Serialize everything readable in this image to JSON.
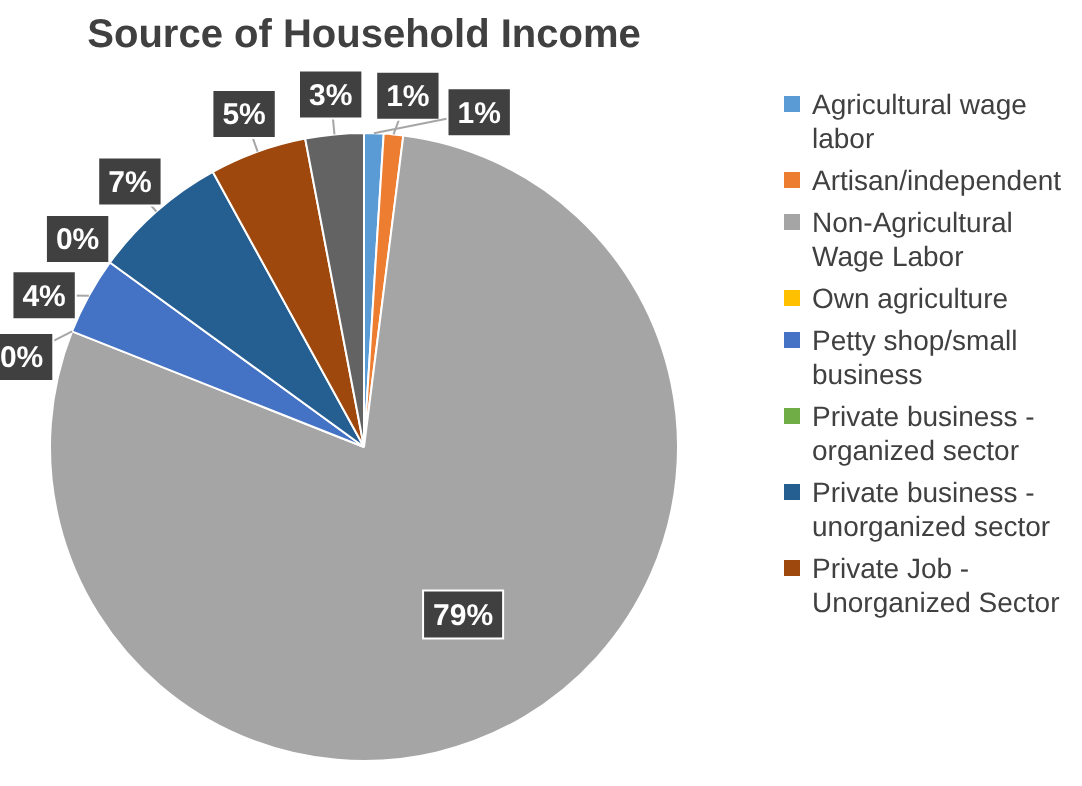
{
  "chart_data": {
    "type": "pie",
    "title": "Source of Household Income",
    "categories": [
      "Agricultural wage labor",
      "Artisan/independent",
      "Non-Agricultural Wage Labor",
      "Own agriculture",
      "Petty shop/small business",
      "Private business - organized sector",
      "Private business - unorganized sector",
      "Private Job - Unorganized Sector",
      null
    ],
    "values": [
      1,
      1,
      79,
      0,
      4,
      0,
      7,
      5,
      3
    ],
    "value_labels": [
      "1%",
      "1%",
      "79%",
      "0%",
      "4%",
      "0%",
      "7%",
      "5%",
      "3%"
    ],
    "colors": [
      "#5b9bd5",
      "#ed7d31",
      "#a5a5a5",
      "#ffc000",
      "#4472c4",
      "#70ad47",
      "#255e91",
      "#9e480e",
      "#636363"
    ],
    "legend": "right"
  }
}
